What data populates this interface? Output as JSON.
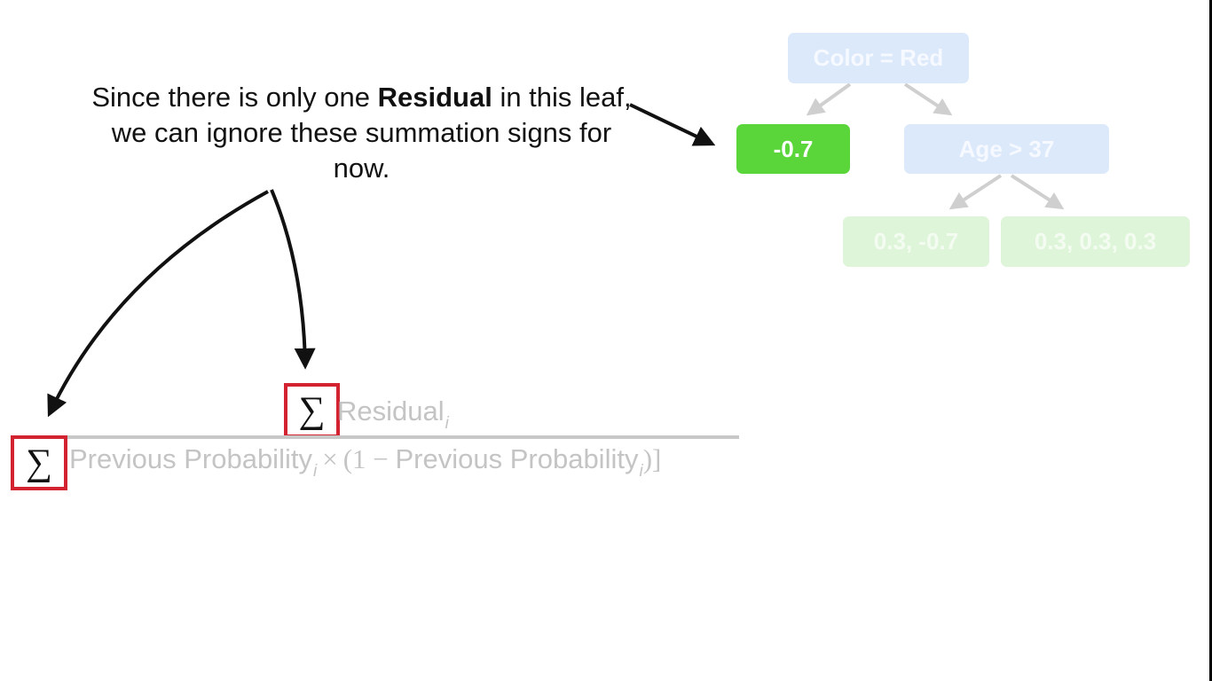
{
  "caption": {
    "part1": "Since there is only one ",
    "bold": "Residual",
    "part2": " in this leaf, we can ignore these summation signs for now."
  },
  "tree": {
    "root": "Color = Red",
    "left_leaf": "-0.7",
    "right_split": "Age > 37",
    "leaf_a": "0.3, -0.7",
    "leaf_b": "0.3, 0.3, 0.3"
  },
  "formula": {
    "sigma": "∑",
    "numerator_term": "Residual",
    "subscript": "i",
    "denominator_term1": "Previous Probability",
    "times": "×",
    "open_paren": "(1 − ",
    "denominator_term2": "Previous Probability",
    "close": ")]"
  },
  "colors": {
    "active_leaf": "#5ad63a",
    "highlight_box": "#d32330",
    "faded_node_blue": "#dbe9fb",
    "faded_node_green": "#def5d9"
  }
}
